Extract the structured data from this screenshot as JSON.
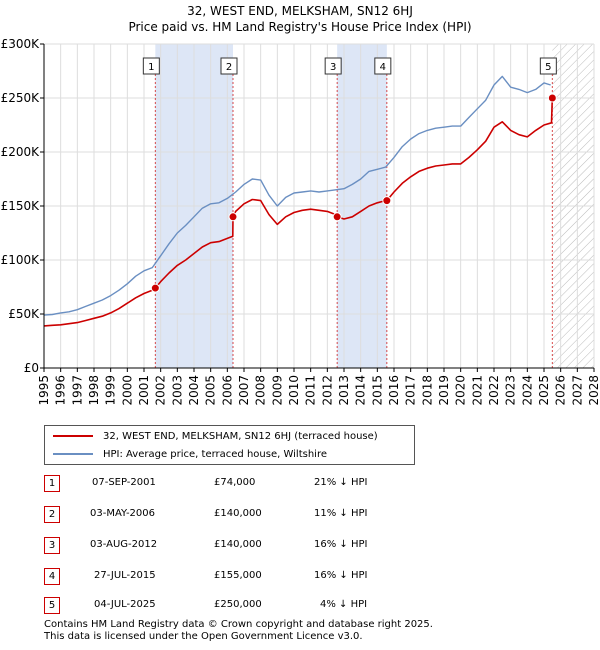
{
  "title_line1": "32, WEST END, MELKSHAM, SN12 6HJ",
  "title_line2": "Price paid vs. HM Land Registry's House Price Index (HPI)",
  "colors": {
    "red": "#cc0000",
    "blue": "#6a8fc2",
    "band": "#dde6f6",
    "grid": "#dddddd"
  },
  "legend": {
    "red_label": "32, WEST END, MELKSHAM, SN12 6HJ (terraced house)",
    "blue_label": "HPI: Average price, terraced house, Wiltshire"
  },
  "sales": [
    {
      "num": "1",
      "date": "07-SEP-2001",
      "price": "£74,000",
      "pct": "21% ↓ HPI"
    },
    {
      "num": "2",
      "date": "03-MAY-2006",
      "price": "£140,000",
      "pct": "11% ↓ HPI"
    },
    {
      "num": "3",
      "date": "03-AUG-2012",
      "price": "£140,000",
      "pct": "16% ↓ HPI"
    },
    {
      "num": "4",
      "date": "27-JUL-2015",
      "price": "£155,000",
      "pct": "16% ↓ HPI"
    },
    {
      "num": "5",
      "date": "04-JUL-2025",
      "price": "£250,000",
      "pct": "4% ↓ HPI"
    }
  ],
  "footer": {
    "line1": "Contains HM Land Registry data © Crown copyright and database right 2025.",
    "line2": "This data is licensed under the Open Government Licence v3.0."
  },
  "chart_data": {
    "type": "line",
    "xlim": [
      1995,
      2028
    ],
    "ylim": [
      0,
      300000
    ],
    "y_ticks": [
      0,
      50000,
      100000,
      150000,
      200000,
      250000,
      300000
    ],
    "y_tick_labels": [
      "£0",
      "£50K",
      "£100K",
      "£150K",
      "£200K",
      "£250K",
      "£300K"
    ],
    "x_ticks": [
      1995,
      1996,
      1997,
      1998,
      1999,
      2000,
      2001,
      2002,
      2003,
      2004,
      2005,
      2006,
      2007,
      2008,
      2009,
      2010,
      2011,
      2012,
      2013,
      2014,
      2015,
      2016,
      2017,
      2018,
      2019,
      2020,
      2021,
      2022,
      2023,
      2024,
      2025,
      2026,
      2027,
      2028
    ],
    "shaded_bands": [
      [
        2001.68,
        2006.34
      ],
      [
        2012.59,
        2015.57
      ]
    ],
    "future_hatch_start": 2025.5,
    "sale_points": [
      {
        "num": "1",
        "x": 2001.68,
        "y": 74000
      },
      {
        "num": "2",
        "x": 2006.34,
        "y": 140000
      },
      {
        "num": "3",
        "x": 2012.59,
        "y": 140000
      },
      {
        "num": "4",
        "x": 2015.57,
        "y": 155000
      },
      {
        "num": "5",
        "x": 2025.5,
        "y": 250000
      }
    ],
    "series": [
      {
        "name": "HPI: Average price, terraced house, Wiltshire",
        "color": "#6a8fc2",
        "x": [
          1995,
          1995.5,
          1996,
          1996.5,
          1997,
          1997.5,
          1998,
          1998.5,
          1999,
          1999.5,
          2000,
          2000.5,
          2001,
          2001.5,
          2002,
          2002.5,
          2003,
          2003.5,
          2004,
          2004.5,
          2005,
          2005.5,
          2006,
          2006.5,
          2007,
          2007.5,
          2008,
          2008.5,
          2009,
          2009.5,
          2010,
          2010.5,
          2011,
          2011.5,
          2012,
          2012.5,
          2013,
          2013.5,
          2014,
          2014.5,
          2015,
          2015.5,
          2016,
          2016.5,
          2017,
          2017.5,
          2018,
          2018.5,
          2019,
          2019.5,
          2020,
          2020.5,
          2021,
          2021.5,
          2022,
          2022.5,
          2023,
          2023.5,
          2024,
          2024.5,
          2025,
          2025.4
        ],
        "values": [
          49000,
          49500,
          51000,
          52000,
          54000,
          57000,
          60000,
          63000,
          67000,
          72000,
          78000,
          85000,
          90000,
          93000,
          104000,
          115000,
          125000,
          132000,
          140000,
          148000,
          152000,
          153000,
          157000,
          163000,
          170000,
          175000,
          174000,
          160000,
          150000,
          158000,
          162000,
          163000,
          164000,
          163000,
          164000,
          165000,
          166000,
          170000,
          175000,
          182000,
          184000,
          186000,
          195000,
          205000,
          212000,
          217000,
          220000,
          222000,
          223000,
          224000,
          224000,
          232000,
          240000,
          248000,
          262000,
          270000,
          260000,
          258000,
          255000,
          258000,
          264000,
          262000
        ]
      },
      {
        "name": "32, WEST END, MELKSHAM, SN12 6HJ (terraced house)",
        "color": "#cc0000",
        "x": [
          1995,
          1995.5,
          1996,
          1996.5,
          1997,
          1997.5,
          1998,
          1998.5,
          1999,
          1999.5,
          2000,
          2000.5,
          2001,
          2001.5,
          2001.68,
          2002,
          2002.5,
          2003,
          2003.5,
          2004,
          2004.5,
          2005,
          2005.5,
          2006,
          2006.33,
          2006.34,
          2006.5,
          2007,
          2007.5,
          2008,
          2008.5,
          2009,
          2009.5,
          2010,
          2010.5,
          2011,
          2011.5,
          2012,
          2012.5,
          2012.59,
          2013,
          2013.5,
          2014,
          2014.5,
          2015,
          2015.5,
          2015.57,
          2016,
          2016.5,
          2017,
          2017.5,
          2018,
          2018.5,
          2019,
          2019.5,
          2020,
          2020.5,
          2021,
          2021.5,
          2022,
          2022.5,
          2023,
          2023.5,
          2024,
          2024.5,
          2025,
          2025.45,
          2025.5,
          2025.6
        ],
        "values": [
          39000,
          39500,
          40000,
          41000,
          42000,
          44000,
          46000,
          48000,
          51000,
          55000,
          60000,
          65000,
          69000,
          72000,
          74000,
          80000,
          88000,
          95000,
          100000,
          106000,
          112000,
          116000,
          117000,
          120000,
          122000,
          140000,
          145000,
          152000,
          156000,
          155000,
          142000,
          133000,
          140000,
          144000,
          146000,
          147000,
          146000,
          145000,
          142000,
          140000,
          138000,
          140000,
          145000,
          150000,
          153000,
          155000,
          155000,
          163000,
          171000,
          177000,
          182000,
          185000,
          187000,
          188000,
          189000,
          189000,
          195000,
          202000,
          210000,
          223000,
          228000,
          220000,
          216000,
          214000,
          220000,
          225000,
          227000,
          250000,
          252000
        ]
      }
    ]
  }
}
